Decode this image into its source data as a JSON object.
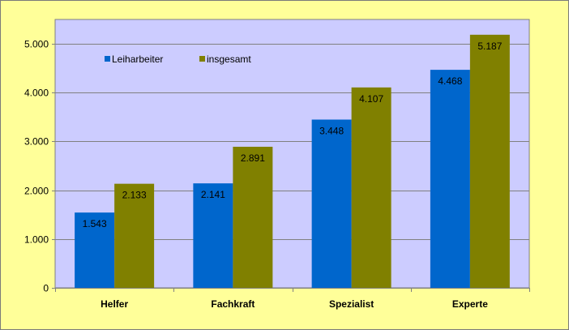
{
  "chart_data": {
    "type": "bar",
    "categories": [
      "Helfer",
      "Fachkraft",
      "Spezialist",
      "Experte"
    ],
    "series": [
      {
        "name": "Leiharbeiter",
        "color": "#0066CC",
        "values": [
          1543,
          2141,
          3448,
          4468
        ],
        "labels": [
          "1.543",
          "2.141",
          "3.448",
          "4.468"
        ]
      },
      {
        "name": "insgesamt",
        "color": "#808000",
        "values": [
          2133,
          2891,
          4107,
          5187
        ],
        "labels": [
          "2.133",
          "2.891",
          "4.107",
          "5.187"
        ]
      }
    ],
    "ylim": [
      0,
      5500
    ],
    "yticks": [
      0,
      1000,
      2000,
      3000,
      4000,
      5000
    ],
    "ytick_labels": [
      "0",
      "1.000",
      "2.000",
      "3.000",
      "4.000",
      "5.000"
    ],
    "grid": true,
    "legend_position": "top-left",
    "plot_background": "#CCCCFF",
    "chart_background": "#FFFF99"
  }
}
